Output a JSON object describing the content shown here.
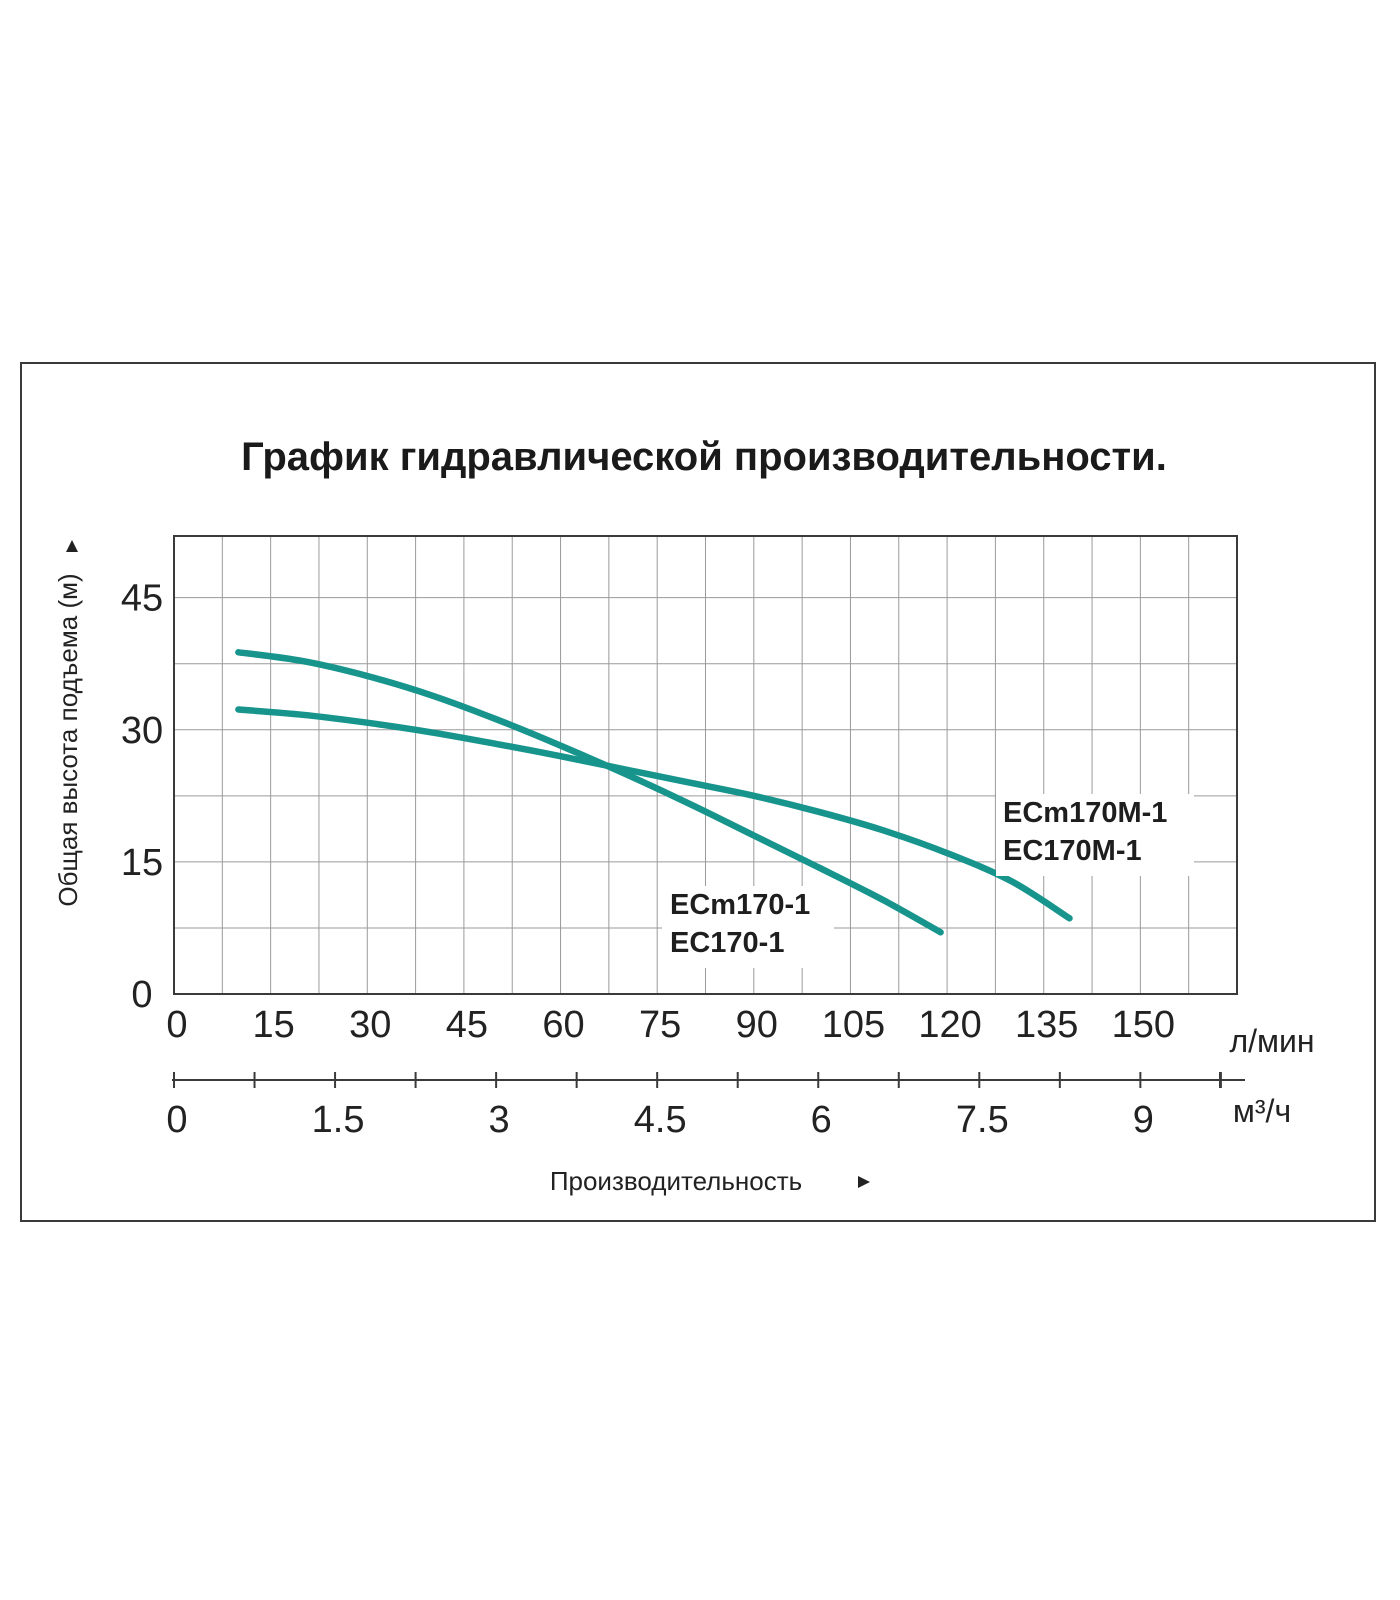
{
  "chart_data": {
    "type": "line",
    "title": "График гидравлической производительности.",
    "ylabel": "Общая высота подъема (м)",
    "xlabel": "Производительность",
    "x_unit_primary": "л/мин",
    "x_unit_secondary": "м³/ч",
    "grid": true,
    "xlim": [
      0,
      165
    ],
    "ylim": [
      0,
      52
    ],
    "x_ticks": [
      0,
      15,
      30,
      45,
      60,
      75,
      90,
      105,
      120,
      135,
      150
    ],
    "x_ticks_secondary": [
      0,
      1.5,
      3,
      4.5,
      6,
      7.5,
      9
    ],
    "y_ticks": [
      0,
      15,
      30,
      45
    ],
    "series_color": "#17948c",
    "series": [
      {
        "label_lines": [
          "ECm170-1",
          "EC170-1"
        ],
        "points": [
          [
            10,
            38.8
          ],
          [
            20,
            37.8
          ],
          [
            30,
            36.1
          ],
          [
            40,
            33.9
          ],
          [
            50,
            31.2
          ],
          [
            60,
            28.2
          ],
          [
            70,
            25.0
          ],
          [
            80,
            21.6
          ],
          [
            90,
            18.0
          ],
          [
            100,
            14.4
          ],
          [
            110,
            10.7
          ],
          [
            119,
            7.0
          ]
        ]
      },
      {
        "label_lines": [
          "ECm170M-1",
          "EC170M-1"
        ],
        "points": [
          [
            10,
            32.3
          ],
          [
            20,
            31.7
          ],
          [
            30,
            30.8
          ],
          [
            40,
            29.7
          ],
          [
            50,
            28.4
          ],
          [
            60,
            27.0
          ],
          [
            70,
            25.5
          ],
          [
            80,
            24.0
          ],
          [
            90,
            22.5
          ],
          [
            100,
            20.7
          ],
          [
            110,
            18.6
          ],
          [
            120,
            16.0
          ],
          [
            130,
            12.8
          ],
          [
            139,
            8.6
          ]
        ]
      }
    ]
  }
}
